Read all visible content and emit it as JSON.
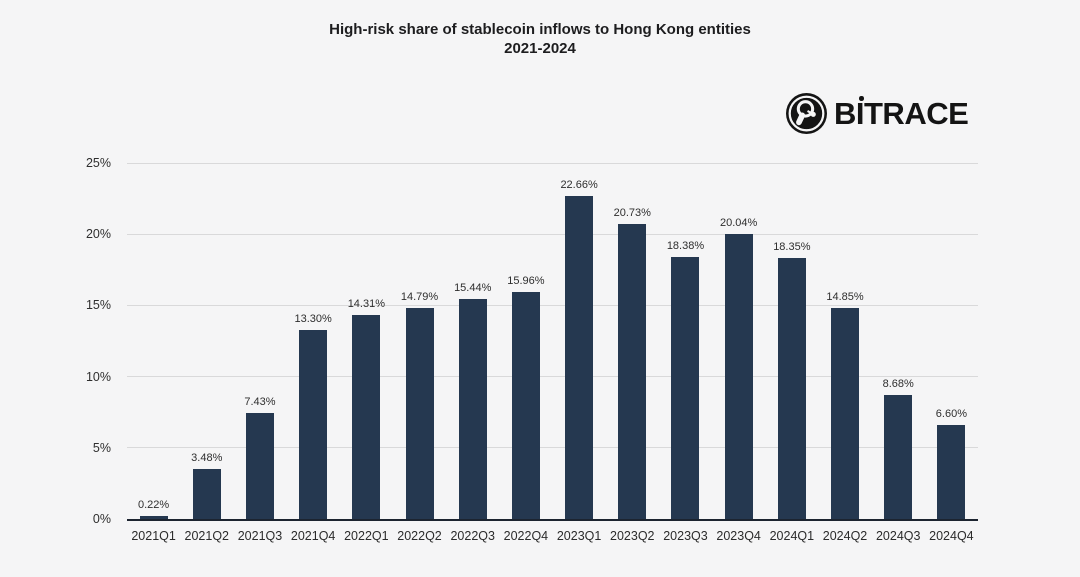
{
  "page": {
    "background": "#f5f5f6"
  },
  "header": {
    "title_line1": "High-risk share of stablecoin inflows to Hong Kong entities",
    "title_line2": "2021-2024"
  },
  "logo": {
    "text": "BITRACE",
    "icon": "magnifier-network-icon"
  },
  "colors": {
    "bar": "#253850",
    "axis": "#1c2430",
    "gridline": "#d9d9da",
    "title_text": "#1d1d1f",
    "label_text": "#2e2e2e",
    "background": "#f5f5f6"
  },
  "chart_data": {
    "type": "bar",
    "title": "High-risk share of stablecoin inflows to Hong Kong entities",
    "subtitle": "2021-2024",
    "categories": [
      "2021Q1",
      "2021Q2",
      "2021Q3",
      "2021Q4",
      "2022Q1",
      "2022Q2",
      "2022Q3",
      "2022Q4",
      "2023Q1",
      "2023Q2",
      "2023Q3",
      "2023Q4",
      "2024Q1",
      "2024Q2",
      "2024Q3",
      "2024Q4"
    ],
    "values": [
      0.22,
      3.48,
      7.43,
      13.3,
      14.31,
      14.79,
      15.44,
      15.96,
      22.66,
      20.73,
      18.38,
      20.04,
      18.35,
      14.85,
      8.68,
      6.6
    ],
    "value_labels": [
      "0.22%",
      "3.48%",
      "7.43%",
      "13.30%",
      "14.31%",
      "14.79%",
      "15.44%",
      "15.96%",
      "22.66%",
      "20.73%",
      "18.38%",
      "20.04%",
      "18.35%",
      "14.85%",
      "8.68%",
      "6.60%"
    ],
    "xlabel": "",
    "ylabel": "",
    "ylim": [
      0,
      25
    ],
    "yticks": [
      0,
      5,
      10,
      15,
      20,
      25
    ],
    "ytick_labels": [
      "0%",
      "5%",
      "10%",
      "15%",
      "20%",
      "25%"
    ],
    "grid": true,
    "legend": "none",
    "bar_color": "#253850"
  }
}
